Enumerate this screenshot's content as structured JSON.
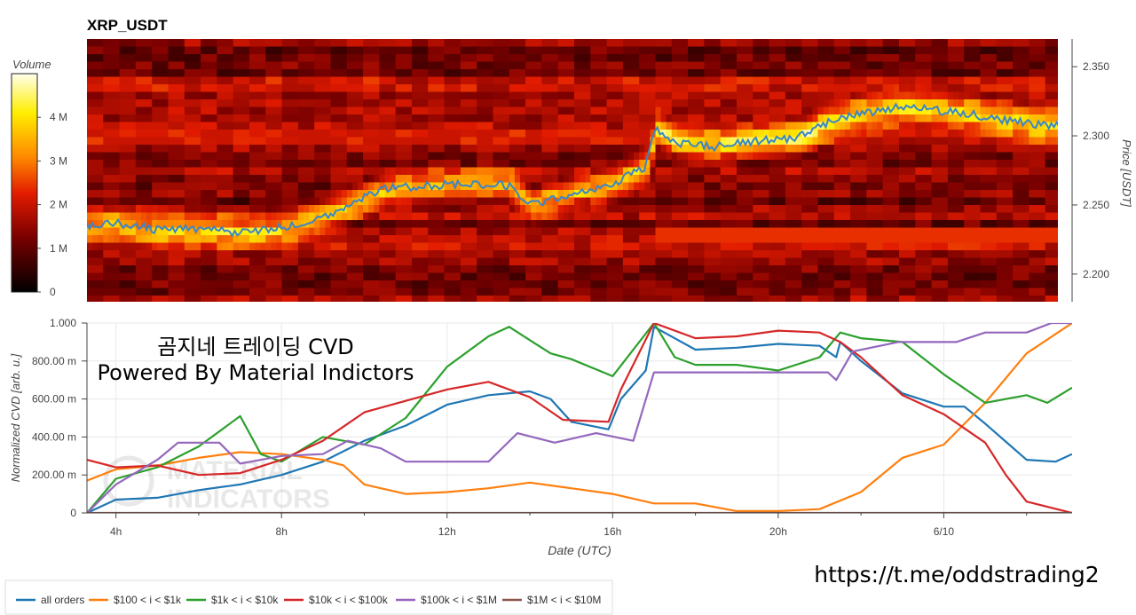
{
  "heatmap": {
    "title": "XRP_USDT",
    "colorbar_title": "Volume",
    "colorbar_ticks": [
      "0",
      "1 M",
      "2 M",
      "3 M",
      "4 M"
    ],
    "price_axis_label": "Price [USDT]",
    "price_ticks": [
      "2.200",
      "2.250",
      "2.300",
      "2.350"
    ]
  },
  "cvd": {
    "ylabel": "Normalized CVD [arb. u.]",
    "xlabel": "Date (UTC)",
    "yticks": [
      "0",
      "200.00 m",
      "400.00 m",
      "600.00 m",
      "800.00 m",
      "1.000"
    ],
    "xticks": [
      "4h",
      "8h",
      "12h",
      "16h",
      "20h",
      "6/10"
    ],
    "annotation_line1": "곰지네 트레이딩 CVD",
    "annotation_line2": "Powered By Material Indictors",
    "watermark_line1": "MATERIAL",
    "watermark_line2": "INDICATORS"
  },
  "link_text": "https://t.me/oddstrading2",
  "legend": [
    {
      "label": "all orders",
      "color": "#1f77b4"
    },
    {
      "label": "$100 < i < $1k",
      "color": "#ff7f0e"
    },
    {
      "label": "$1k < i < $10k",
      "color": "#2ca02c"
    },
    {
      "label": "$10k < i < $100k",
      "color": "#d62728"
    },
    {
      "label": "$100k < i < $1M",
      "color": "#9467bd"
    },
    {
      "label": "$1M < i < $10M",
      "color": "#8c564b"
    }
  ],
  "chart_data": [
    {
      "type": "heatmap",
      "title": "XRP_USDT",
      "x_range_hours": [
        3.3,
        27.1
      ],
      "y_range_price": [
        2.18,
        2.37
      ],
      "price_series": {
        "name": "price",
        "x_hours": [
          3.3,
          4.0,
          5.0,
          6.0,
          7.0,
          7.5,
          8.5,
          9.5,
          10.5,
          11.5,
          12.5,
          13.5,
          14.0,
          15.0,
          16.0,
          16.8,
          17.0,
          17.5,
          18.5,
          19.5,
          20.5,
          21.0,
          22.0,
          23.0,
          24.0,
          25.0,
          26.0,
          27.1
        ],
        "price": [
          2.234,
          2.237,
          2.232,
          2.233,
          2.23,
          2.232,
          2.236,
          2.248,
          2.262,
          2.264,
          2.265,
          2.264,
          2.25,
          2.258,
          2.265,
          2.278,
          2.306,
          2.295,
          2.292,
          2.296,
          2.299,
          2.308,
          2.316,
          2.321,
          2.318,
          2.314,
          2.309,
          2.307
        ]
      },
      "colorscale": "hot",
      "colorbar": {
        "title": "Volume",
        "range_millions": [
          0,
          5
        ]
      }
    },
    {
      "type": "line",
      "xlabel": "Date (UTC)",
      "ylabel": "Normalized CVD [arb. u.]",
      "ylim": [
        0,
        1
      ],
      "x_range_hours": [
        3.3,
        27.1
      ],
      "xticks": [
        "4h",
        "8h",
        "12h",
        "16h",
        "20h",
        "6/10"
      ],
      "series": [
        {
          "name": "all orders",
          "x": [
            3.3,
            4.0,
            5.0,
            6.0,
            7.0,
            8.0,
            9.0,
            10.0,
            11.0,
            12.0,
            13.0,
            14.0,
            14.5,
            15.0,
            15.9,
            16.2,
            16.8,
            17.0,
            18.0,
            19.0,
            20.0,
            21.0,
            21.4,
            21.5,
            21.7,
            22.0,
            23.0,
            24.0,
            24.5,
            25.0,
            26.0,
            26.7,
            27.1
          ],
          "y": [
            0.0,
            0.07,
            0.08,
            0.12,
            0.15,
            0.2,
            0.27,
            0.38,
            0.46,
            0.57,
            0.62,
            0.64,
            0.6,
            0.48,
            0.44,
            0.6,
            0.75,
            0.98,
            0.86,
            0.87,
            0.89,
            0.88,
            0.82,
            0.9,
            0.86,
            0.8,
            0.63,
            0.56,
            0.56,
            0.47,
            0.28,
            0.27,
            0.31
          ]
        },
        {
          "name": "$100 < i < $1k",
          "x": [
            3.3,
            4.0,
            5.0,
            6.0,
            7.0,
            8.0,
            9.0,
            9.5,
            10.0,
            11.0,
            12.0,
            13.0,
            14.0,
            15.0,
            16.0,
            17.0,
            18.0,
            19.0,
            20.0,
            21.0,
            22.0,
            23.0,
            24.0,
            25.0,
            26.0,
            27.1
          ],
          "y": [
            0.17,
            0.23,
            0.25,
            0.29,
            0.32,
            0.31,
            0.28,
            0.25,
            0.15,
            0.1,
            0.11,
            0.13,
            0.16,
            0.13,
            0.1,
            0.05,
            0.05,
            0.01,
            0.01,
            0.02,
            0.11,
            0.29,
            0.36,
            0.58,
            0.84,
            1.0
          ]
        },
        {
          "name": "$1k < i < $10k",
          "x": [
            3.3,
            4.0,
            5.0,
            6.0,
            7.0,
            7.5,
            8.0,
            9.0,
            10.0,
            11.0,
            12.0,
            13.0,
            13.5,
            14.0,
            14.5,
            15.0,
            16.0,
            17.0,
            17.5,
            18.0,
            19.0,
            20.0,
            21.0,
            21.5,
            22.0,
            23.0,
            24.0,
            25.0,
            26.0,
            26.5,
            27.1
          ],
          "y": [
            0.0,
            0.18,
            0.24,
            0.35,
            0.51,
            0.31,
            0.27,
            0.4,
            0.36,
            0.5,
            0.77,
            0.93,
            0.98,
            0.91,
            0.84,
            0.81,
            0.72,
            1.0,
            0.82,
            0.78,
            0.78,
            0.75,
            0.82,
            0.95,
            0.92,
            0.9,
            0.73,
            0.58,
            0.62,
            0.58,
            0.66
          ]
        },
        {
          "name": "$10k < i < $100k",
          "x": [
            3.3,
            4.0,
            5.0,
            6.0,
            7.0,
            8.0,
            9.0,
            10.0,
            11.0,
            12.0,
            13.0,
            14.0,
            14.8,
            15.9,
            16.2,
            17.0,
            18.0,
            19.0,
            20.0,
            21.0,
            21.5,
            22.0,
            23.0,
            24.0,
            25.0,
            25.5,
            26.0,
            27.1
          ],
          "y": [
            0.28,
            0.24,
            0.25,
            0.2,
            0.21,
            0.28,
            0.38,
            0.53,
            0.59,
            0.65,
            0.69,
            0.61,
            0.49,
            0.48,
            0.65,
            1.0,
            0.92,
            0.93,
            0.96,
            0.95,
            0.9,
            0.82,
            0.62,
            0.52,
            0.37,
            0.2,
            0.06,
            0.0
          ]
        },
        {
          "name": "$100k < i < $1M",
          "x": [
            3.3,
            4.0,
            5.0,
            5.5,
            6.5,
            7.0,
            8.0,
            9.0,
            9.6,
            10.4,
            11.0,
            13.0,
            13.7,
            14.6,
            15.6,
            16.5,
            17.0,
            21.2,
            21.4,
            21.8,
            22.9,
            24.3,
            25.0,
            26.0,
            26.6,
            27.1
          ],
          "y": [
            0.0,
            0.15,
            0.28,
            0.37,
            0.37,
            0.26,
            0.3,
            0.31,
            0.38,
            0.34,
            0.27,
            0.27,
            0.42,
            0.37,
            0.42,
            0.38,
            0.74,
            0.74,
            0.7,
            0.85,
            0.9,
            0.9,
            0.95,
            0.95,
            1.0,
            1.0
          ]
        },
        {
          "name": "$1M < i < $10M",
          "x": [
            3.3,
            27.1
          ],
          "y": [
            0.0,
            0.0
          ]
        }
      ]
    }
  ]
}
